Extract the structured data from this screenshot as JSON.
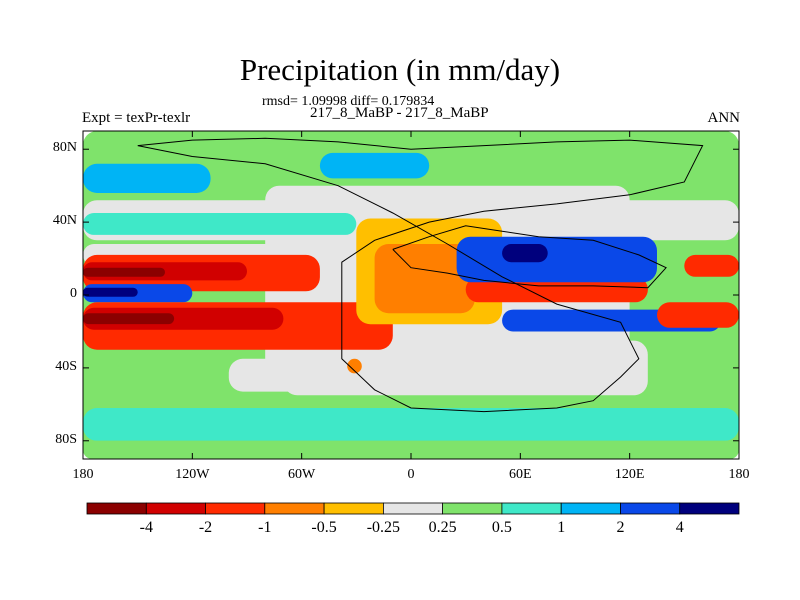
{
  "figure": {
    "title": "Precipitation (in mm/day)",
    "stats_line": "rmsd= 1.09998 diff= 0.179834",
    "subtitle": "217_8_MaBP - 217_8_MaBP",
    "left_label": "Expt = texPr-texlr",
    "right_label": "ANN"
  },
  "chart_data": {
    "type": "heatmap",
    "variable": "Precipitation",
    "units": "mm/day",
    "xlim": [
      -180,
      180
    ],
    "ylim": [
      -90,
      90
    ],
    "x_ticks": [
      {
        "value": -180,
        "label": "180"
      },
      {
        "value": -120,
        "label": "120W"
      },
      {
        "value": -60,
        "label": "60W"
      },
      {
        "value": 0,
        "label": "0"
      },
      {
        "value": 60,
        "label": "60E"
      },
      {
        "value": 120,
        "label": "120E"
      },
      {
        "value": 180,
        "label": "180"
      }
    ],
    "y_ticks": [
      {
        "value": 80,
        "label": "80N"
      },
      {
        "value": 40,
        "label": "40N"
      },
      {
        "value": 0,
        "label": "0"
      },
      {
        "value": -40,
        "label": "40S"
      },
      {
        "value": -80,
        "label": "80S"
      }
    ],
    "levels": [
      -4,
      -2,
      -1,
      -0.5,
      -0.25,
      0.25,
      0.5,
      1,
      2,
      4
    ],
    "level_labels": [
      "-4",
      "-2",
      "-1",
      "-0.5",
      "-0.25",
      "0.25",
      "0.5",
      "1",
      "2",
      "4"
    ],
    "colors": [
      "#8b0000",
      "#d10000",
      "#ff2a00",
      "#ff7f00",
      "#ffbf00",
      "#e6e6e6",
      "#7fe36b",
      "#3fe8c8",
      "#00b4f5",
      "#0a48e8",
      "#00007d"
    ],
    "regions": [
      {
        "name": "background-weak-positive",
        "bin": 6,
        "lon": -180,
        "lat": 90,
        "w": 360,
        "h": 180
      },
      {
        "name": "northern-dry-belt",
        "bin": 5,
        "lon": -180,
        "lat": 52,
        "w": 360,
        "h": 22
      },
      {
        "name": "pacific-dry",
        "bin": 5,
        "lon": -180,
        "lat": 28,
        "w": 130,
        "h": 12
      },
      {
        "name": "continent-dry-core",
        "bin": 5,
        "lon": -80,
        "lat": 60,
        "w": 200,
        "h": 105
      },
      {
        "name": "south-atlantic-dry",
        "bin": 5,
        "lon": -70,
        "lat": -25,
        "w": 200,
        "h": 30
      },
      {
        "name": "southern-dry-belt",
        "bin": 5,
        "lon": -100,
        "lat": -35,
        "w": 200,
        "h": 18
      },
      {
        "name": "north-pacific-wet",
        "bin": 8,
        "lon": -180,
        "lat": 72,
        "w": 70,
        "h": 16
      },
      {
        "name": "north-atlantic-wet",
        "bin": 8,
        "lon": -50,
        "lat": 78,
        "w": 60,
        "h": 14
      },
      {
        "name": "north-pacific-cyan",
        "bin": 7,
        "lon": -180,
        "lat": 45,
        "w": 150,
        "h": 12
      },
      {
        "name": "tropical-pacific-north-red",
        "bin": 2,
        "lon": -180,
        "lat": 22,
        "w": 130,
        "h": 20
      },
      {
        "name": "tropical-pacific-north-core",
        "bin": 1,
        "lon": -180,
        "lat": 18,
        "w": 90,
        "h": 10
      },
      {
        "name": "tropical-pacific-north-max",
        "bin": 0,
        "lon": -180,
        "lat": 15,
        "w": 45,
        "h": 5
      },
      {
        "name": "equatorial-blue",
        "bin": 9,
        "lon": -180,
        "lat": 6,
        "w": 60,
        "h": 10
      },
      {
        "name": "equatorial-navy",
        "bin": 10,
        "lon": -180,
        "lat": 4,
        "w": 30,
        "h": 5
      },
      {
        "name": "tropical-pacific-south-red",
        "bin": 2,
        "lon": -180,
        "lat": -4,
        "w": 170,
        "h": 26
      },
      {
        "name": "tropical-pacific-south-core",
        "bin": 1,
        "lon": -180,
        "lat": -7,
        "w": 110,
        "h": 12
      },
      {
        "name": "tropical-pacific-south-max",
        "bin": 0,
        "lon": -180,
        "lat": -10,
        "w": 50,
        "h": 6
      },
      {
        "name": "continent-orange",
        "bin": 4,
        "lon": -30,
        "lat": 42,
        "w": 80,
        "h": 58
      },
      {
        "name": "continent-deep-orange",
        "bin": 3,
        "lon": -20,
        "lat": 28,
        "w": 55,
        "h": 38
      },
      {
        "name": "arabian-red",
        "bin": 2,
        "lon": 30,
        "lat": 10,
        "w": 100,
        "h": 14
      },
      {
        "name": "indian-ocean-blue",
        "bin": 9,
        "lon": 25,
        "lat": 32,
        "w": 110,
        "h": 25
      },
      {
        "name": "indian-ocean-navy",
        "bin": 10,
        "lon": 50,
        "lat": 28,
        "w": 25,
        "h": 10
      },
      {
        "name": "south-indian-blue",
        "bin": 9,
        "lon": 50,
        "lat": -8,
        "w": 120,
        "h": 12
      },
      {
        "name": "west-pacific-red",
        "bin": 2,
        "lon": 150,
        "lat": 22,
        "w": 30,
        "h": 12
      },
      {
        "name": "west-pacific-south-red",
        "bin": 2,
        "lon": 135,
        "lat": -4,
        "w": 45,
        "h": 14
      },
      {
        "name": "southern-orange-spot",
        "bin": 3,
        "lon": -35,
        "lat": -35,
        "w": 8,
        "h": 8
      },
      {
        "name": "southern-ocean-cyan",
        "bin": 7,
        "lon": -180,
        "lat": -62,
        "w": 360,
        "h": 18
      },
      {
        "name": "antarctic-green",
        "bin": 6,
        "lon": -180,
        "lat": -80,
        "w": 360,
        "h": 10
      }
    ],
    "outlines": [
      {
        "name": "ocean-basin-outline",
        "points": [
          [
            -150,
            82
          ],
          [
            -120,
            85
          ],
          [
            -80,
            86
          ],
          [
            -40,
            84
          ],
          [
            0,
            80
          ],
          [
            40,
            82
          ],
          [
            80,
            84
          ],
          [
            120,
            85
          ],
          [
            160,
            82
          ],
          [
            150,
            62
          ],
          [
            120,
            55
          ],
          [
            80,
            50
          ],
          [
            40,
            46
          ],
          [
            10,
            40
          ],
          [
            -20,
            30
          ],
          [
            -38,
            18
          ],
          [
            -38,
            -10
          ],
          [
            -38,
            -35
          ],
          [
            -20,
            -52
          ],
          [
            0,
            -62
          ],
          [
            40,
            -64
          ],
          [
            80,
            -62
          ],
          [
            100,
            -58
          ],
          [
            115,
            -45
          ],
          [
            125,
            -35
          ],
          [
            115,
            -15
          ],
          [
            80,
            -5
          ],
          [
            50,
            10
          ],
          [
            20,
            28
          ],
          [
            -10,
            45
          ],
          [
            -40,
            60
          ],
          [
            -80,
            72
          ],
          [
            -120,
            76
          ],
          [
            -150,
            82
          ]
        ]
      },
      {
        "name": "subcontinent-outline",
        "points": [
          [
            -10,
            25
          ],
          [
            10,
            32
          ],
          [
            30,
            38
          ],
          [
            50,
            35
          ],
          [
            70,
            32
          ],
          [
            100,
            30
          ],
          [
            125,
            22
          ],
          [
            140,
            15
          ],
          [
            130,
            4
          ],
          [
            100,
            5
          ],
          [
            70,
            5
          ],
          [
            40,
            8
          ],
          [
            20,
            12
          ],
          [
            0,
            15
          ],
          [
            -10,
            25
          ]
        ]
      }
    ],
    "colorbar": {
      "orientation": "horizontal",
      "levels": [
        -4,
        -2,
        -1,
        -0.5,
        -0.25,
        0.25,
        0.5,
        1,
        2,
        4
      ]
    }
  }
}
